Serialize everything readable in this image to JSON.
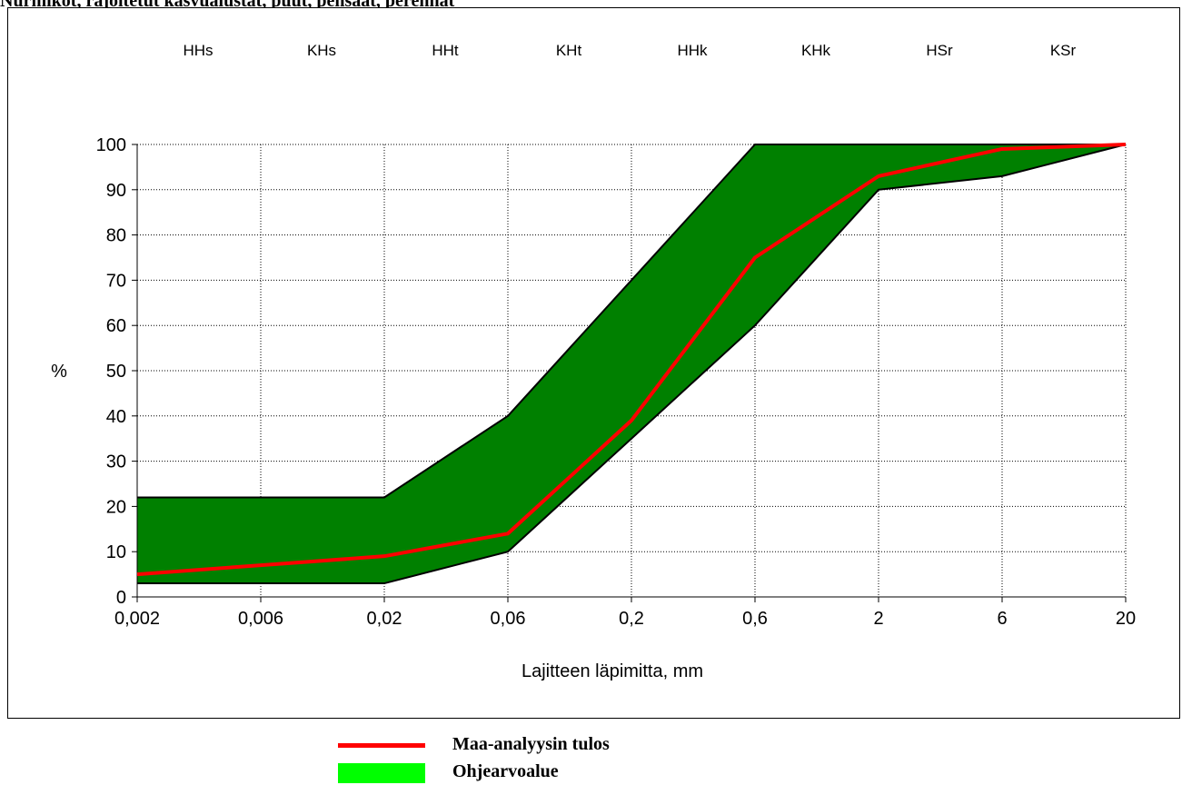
{
  "title": "Nurmikot, rajoitetut kasvualustat, puut, pensaat, perennat",
  "legend": {
    "items": [
      {
        "label": "Maa-analyysin tulos",
        "color": "#ff0000",
        "kind": "line"
      },
      {
        "label": "Ohjearvoalue",
        "color": "#00ff00",
        "kind": "fill"
      }
    ]
  },
  "chart_data": {
    "type": "area",
    "title": "",
    "xlabel": "Lajitteen läpimitta, mm",
    "ylabel": "%",
    "x_scale": "log",
    "x": [
      "0,002",
      "0,006",
      "0,02",
      "0,06",
      "0,2",
      "0,6",
      "2",
      "6",
      "20"
    ],
    "ylim": [
      0,
      100
    ],
    "y_ticks": [
      0,
      10,
      20,
      30,
      40,
      50,
      60,
      70,
      80,
      90,
      100
    ],
    "grid": true,
    "fraction_labels": [
      "HHs",
      "KHs",
      "HHt",
      "KHt",
      "HHk",
      "KHk",
      "HSr",
      "KSr"
    ],
    "band": {
      "name": "Ohjearvoalue",
      "fill_color": "#008000",
      "upper": [
        22,
        22,
        22,
        40,
        70,
        100,
        100,
        100,
        100
      ],
      "lower": [
        3,
        3,
        3,
        10,
        35,
        60,
        90,
        93,
        100
      ]
    },
    "series": [
      {
        "name": "Maa-analyysin tulos",
        "color": "#ff0000",
        "values": [
          5,
          7,
          9,
          14,
          39,
          75,
          93,
          99,
          100
        ]
      }
    ]
  }
}
